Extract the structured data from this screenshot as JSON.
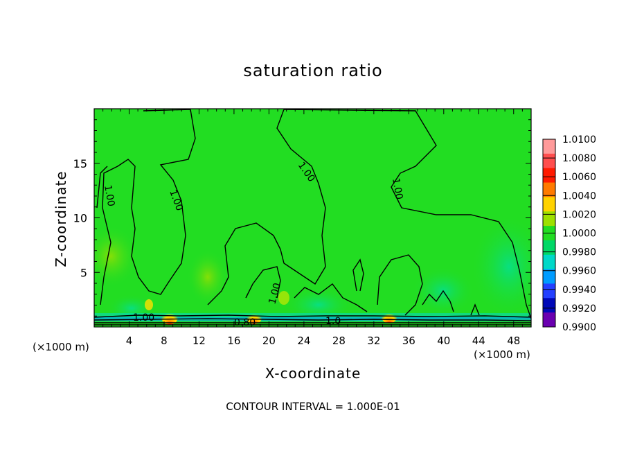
{
  "chart_data": {
    "type": "heatmap",
    "title": "saturation ratio",
    "xlabel": "X-coordinate",
    "ylabel": "Z-coordinate",
    "x_unit": "(×1000 m)",
    "xlim": [
      0,
      50
    ],
    "ylim": [
      0,
      20
    ],
    "x_ticks": [
      4,
      8,
      12,
      16,
      20,
      24,
      28,
      32,
      36,
      40,
      44,
      48
    ],
    "y_ticks": [
      5,
      10,
      15
    ],
    "colorbar": {
      "levels": [
        "1.0100",
        "1.0080",
        "1.0060",
        "1.0040",
        "1.0020",
        "1.0000",
        "0.9980",
        "0.9960",
        "0.9940",
        "0.9920",
        "0.9900"
      ],
      "colors": [
        "#ff9a9a",
        "#ff4e4e",
        "#ff1a00",
        "#ff7a00",
        "#ffd200",
        "#9ee000",
        "#22dd22",
        "#00d866",
        "#00d8c8",
        "#009cff",
        "#2440ff",
        "#0008b8",
        "#6a00b0"
      ]
    },
    "contour_labels": [
      "1.00",
      "1.00",
      "1.00",
      "1.00",
      "1.00",
      "1.00",
      "0.80",
      "1.00"
    ],
    "footer": "CONTOUR INTERVAL = 1.000E-01"
  }
}
